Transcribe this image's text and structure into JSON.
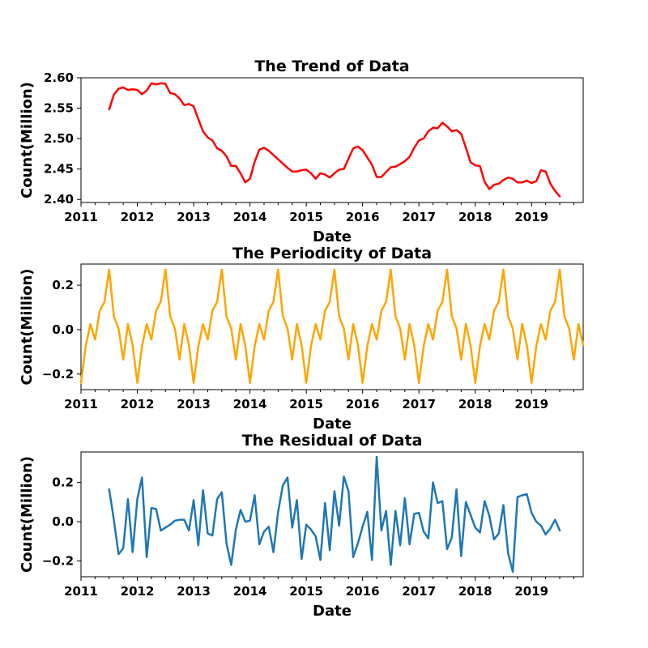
{
  "chart_data": [
    {
      "type": "line",
      "title": "The Trend of Data",
      "xlabel": "Date",
      "ylabel": "Count(Million)",
      "color": "#ff0000",
      "xlim": [
        "2011-01",
        "2019-12"
      ],
      "ylim": [
        2.395,
        2.6
      ],
      "xticks": [
        "2011",
        "2012",
        "2013",
        "2014",
        "2015",
        "2016",
        "2017",
        "2018",
        "2019"
      ],
      "yticks": [
        "2.40",
        "2.45",
        "2.50",
        "2.55",
        "2.60"
      ],
      "series": [
        {
          "start": "2011-07",
          "values": [
            2.548,
            2.572,
            2.582,
            2.584,
            2.58,
            2.581,
            2.58,
            2.573,
            2.579,
            2.591,
            2.589,
            2.591,
            2.59,
            2.575,
            2.573,
            2.566,
            2.555,
            2.557,
            2.553,
            2.532,
            2.512,
            2.502,
            2.497,
            2.484,
            2.48,
            2.471,
            2.455,
            2.455,
            2.443,
            2.428,
            2.434,
            2.462,
            2.482,
            2.485,
            2.48,
            2.473,
            2.466,
            2.459,
            2.452,
            2.446,
            2.446,
            2.448,
            2.449,
            2.443,
            2.434,
            2.443,
            2.441,
            2.436,
            2.443,
            2.449,
            2.45,
            2.467,
            2.484,
            2.487,
            2.481,
            2.469,
            2.457,
            2.437,
            2.437,
            2.445,
            2.453,
            2.454,
            2.458,
            2.463,
            2.47,
            2.485,
            2.497,
            2.5,
            2.512,
            2.518,
            2.517,
            2.526,
            2.52,
            2.512,
            2.514,
            2.508,
            2.485,
            2.461,
            2.456,
            2.455,
            2.429,
            2.417,
            2.424,
            2.426,
            2.432,
            2.436,
            2.434,
            2.428,
            2.428,
            2.431,
            2.427,
            2.43,
            2.448,
            2.446,
            2.426,
            2.414,
            2.405
          ]
        }
      ]
    },
    {
      "type": "line",
      "title": "The Periodicity of Data",
      "xlabel": "Date",
      "ylabel": "Count(Million)",
      "color": "#ffa500",
      "xlim": [
        "2011-01",
        "2019-12"
      ],
      "ylim": [
        -0.27,
        0.295
      ],
      "xticks": [
        "2011",
        "2012",
        "2013",
        "2014",
        "2015",
        "2016",
        "2017",
        "2018",
        "2019"
      ],
      "yticks": [
        "−0.2",
        "0.0",
        "0.2"
      ],
      "series": [
        {
          "start": "2011-01",
          "period": 12,
          "pattern": [
            -0.24,
            -0.075,
            0.025,
            -0.045,
            0.085,
            0.125,
            0.27,
            0.06,
            0.005,
            -0.135,
            0.025,
            -0.07
          ],
          "months": 108
        }
      ]
    },
    {
      "type": "line",
      "title": "The Residual of Data",
      "xlabel": "Date",
      "ylabel": "Count(Million)",
      "color": "#1f77b4",
      "xlim": [
        "2011-01",
        "2019-12"
      ],
      "ylim": [
        -0.28,
        0.355
      ],
      "xticks": [
        "2011",
        "2012",
        "2013",
        "2014",
        "2015",
        "2016",
        "2017",
        "2018",
        "2019"
      ],
      "yticks": [
        "−0.2",
        "0.0",
        "0.2"
      ],
      "series": [
        {
          "start": "2011-07",
          "values": [
            0.165,
            0.01,
            -0.165,
            -0.135,
            0.115,
            -0.155,
            0.115,
            0.225,
            -0.18,
            0.07,
            0.065,
            -0.045,
            -0.03,
            -0.015,
            0.005,
            0.01,
            0.01,
            -0.045,
            0.11,
            -0.12,
            0.16,
            -0.06,
            -0.07,
            0.115,
            0.15,
            -0.11,
            -0.22,
            -0.04,
            0.06,
            0.0,
            0.005,
            0.135,
            -0.115,
            -0.05,
            -0.025,
            -0.155,
            0.05,
            0.185,
            0.225,
            -0.03,
            0.11,
            -0.19,
            -0.015,
            -0.04,
            -0.075,
            -0.195,
            0.095,
            -0.145,
            0.155,
            -0.02,
            0.23,
            0.155,
            -0.18,
            -0.11,
            -0.025,
            0.05,
            -0.195,
            0.33,
            -0.045,
            0.055,
            -0.22,
            0.055,
            -0.12,
            0.12,
            -0.115,
            0.04,
            0.045,
            -0.05,
            -0.085,
            0.2,
            0.095,
            0.105,
            -0.14,
            -0.08,
            0.165,
            -0.175,
            0.1,
            0.035,
            -0.03,
            -0.055,
            0.105,
            0.03,
            -0.09,
            -0.06,
            0.085,
            -0.16,
            -0.255,
            0.125,
            0.135,
            0.14,
            0.045,
            0.0,
            -0.02,
            -0.065,
            -0.035,
            0.01,
            -0.045
          ]
        }
      ]
    }
  ]
}
